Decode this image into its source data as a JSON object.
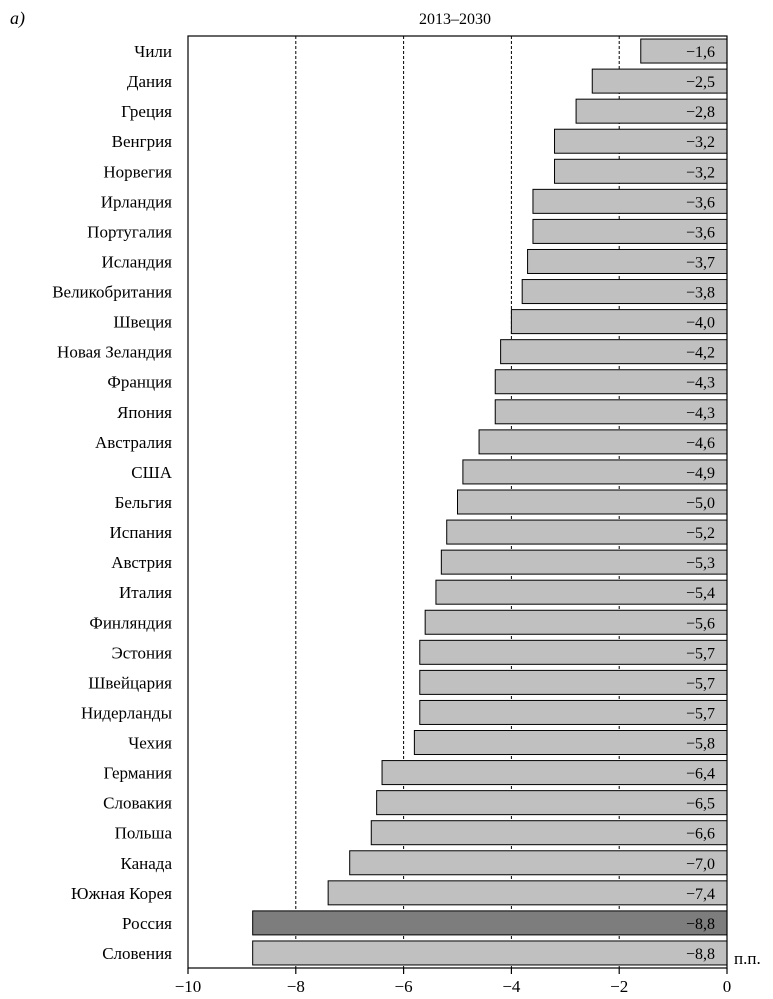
{
  "chart_data": {
    "type": "bar",
    "orientation": "horizontal",
    "panel_label": "а)",
    "title": "2013–2030",
    "unit_label": "п.п.",
    "xlim": [
      -10,
      0
    ],
    "x_ticks": [
      -10,
      -8,
      -6,
      -4,
      -2,
      0
    ],
    "x_tick_labels": [
      "−10",
      "−8",
      "−6",
      "−4",
      "−2",
      "0"
    ],
    "gridlines": [
      -8,
      -6,
      -4,
      -2
    ],
    "grid": "dashed vertical",
    "categories": [
      "Чили",
      "Дания",
      "Греция",
      "Венгрия",
      "Норвегия",
      "Ирландия",
      "Португалия",
      "Исландия",
      "Великобритания",
      "Швеция",
      "Новая Зеландия",
      "Франция",
      "Япония",
      "Австралия",
      "США",
      "Бельгия",
      "Испания",
      "Австрия",
      "Италия",
      "Финляндия",
      "Эстония",
      "Швейцария",
      "Нидерланды",
      "Чехия",
      "Германия",
      "Словакия",
      "Польша",
      "Канада",
      "Южная Корея",
      "Россия",
      "Словения"
    ],
    "values": [
      -1.6,
      -2.5,
      -2.8,
      -3.2,
      -3.2,
      -3.6,
      -3.6,
      -3.7,
      -3.8,
      -4.0,
      -4.2,
      -4.3,
      -4.3,
      -4.6,
      -4.9,
      -5.0,
      -5.2,
      -5.3,
      -5.4,
      -5.6,
      -5.7,
      -5.7,
      -5.7,
      -5.8,
      -6.4,
      -6.5,
      -6.6,
      -7.0,
      -7.4,
      -8.8,
      -8.8
    ],
    "value_labels": [
      "−1,6",
      "−2,5",
      "−2,8",
      "−3,2",
      "−3,2",
      "−3,6",
      "−3,6",
      "−3,7",
      "−3,8",
      "−4,0",
      "−4,2",
      "−4,3",
      "−4,3",
      "−4,6",
      "−4,9",
      "−5,0",
      "−5,2",
      "−5,3",
      "−5,4",
      "−5,6",
      "−5,7",
      "−5,7",
      "−5,7",
      "−5,8",
      "−6,4",
      "−6,5",
      "−6,6",
      "−7,0",
      "−7,4",
      "−8,8",
      "−8,8"
    ],
    "highlight_category": "Россия",
    "colors": {
      "bar": "#c0c0c0",
      "highlight": "#7d7d7d",
      "stroke": "#000000",
      "grid": "#000000"
    }
  }
}
